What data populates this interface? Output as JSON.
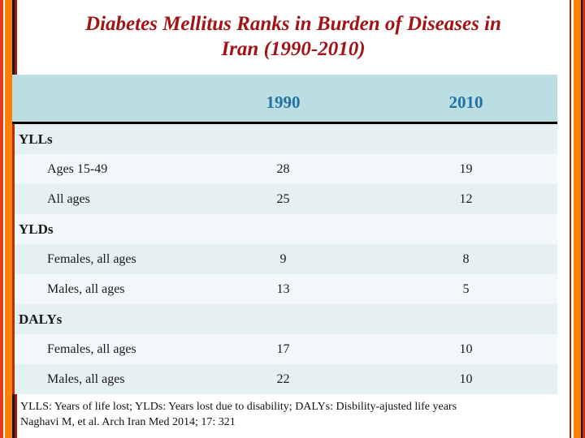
{
  "title": {
    "line1": "Diabetes Mellitus Ranks in Burden of Diseases in",
    "line2": "Iran (1990-2010)"
  },
  "table": {
    "columns": {
      "label": "",
      "y1990": "1990",
      "y2010": "2010"
    },
    "rows": [
      {
        "type": "section",
        "label": "YLLs",
        "v1990": "",
        "v2010": ""
      },
      {
        "type": "item",
        "label": "Ages 15-49",
        "v1990": "28",
        "v2010": "19"
      },
      {
        "type": "item",
        "label": "All ages",
        "v1990": "25",
        "v2010": "12"
      },
      {
        "type": "section",
        "label": "YLDs",
        "v1990": "",
        "v2010": ""
      },
      {
        "type": "item",
        "label": "Females, all ages",
        "v1990": "9",
        "v2010": "8"
      },
      {
        "type": "item",
        "label": "Males, all ages",
        "v1990": "13",
        "v2010": "5"
      },
      {
        "type": "section",
        "label": "DALYs",
        "v1990": "",
        "v2010": ""
      },
      {
        "type": "item",
        "label": "Females, all ages",
        "v1990": "17",
        "v2010": "10"
      },
      {
        "type": "item",
        "label": "Males, all ages",
        "v1990": "22",
        "v2010": "10"
      }
    ]
  },
  "footnote": {
    "line1": "YLLS: Years of life lost; YLDs: Years lost due to disability; DALYs: Disbility-ajusted life years",
    "line2": "Naghavi M, et al. Arch Iran Med 2014; 17: 321"
  },
  "colors": {
    "title_red": "#a11316",
    "header_background": "#bbdee2",
    "header_year_blue": "#2372a6",
    "row_band_dark": "#e5f0f1",
    "row_band_light": "#f2f8f9",
    "frame_orange": "#ff8103",
    "frame_red": "#e63a1b",
    "frame_dark_red": "#9e1d0e",
    "divider_black": "#000000"
  }
}
